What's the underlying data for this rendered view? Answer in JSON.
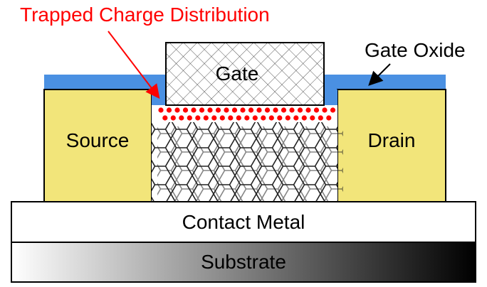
{
  "labels": {
    "title": "Trapped Charge Distribution",
    "gate": "Gate",
    "gate_oxide": "Gate Oxide",
    "source": "Source",
    "drain": "Drain",
    "contact_metal": "Contact Metal",
    "substrate": "Substrate"
  },
  "colors": {
    "title_red": "#ff0000",
    "charge_dot": "#ff0000",
    "oxide_blue": "#4a90e2",
    "electrode_yellow": "#f2e57a",
    "outline": "#000000",
    "substrate_dark": "#000000",
    "substrate_light": "#ffffff"
  }
}
